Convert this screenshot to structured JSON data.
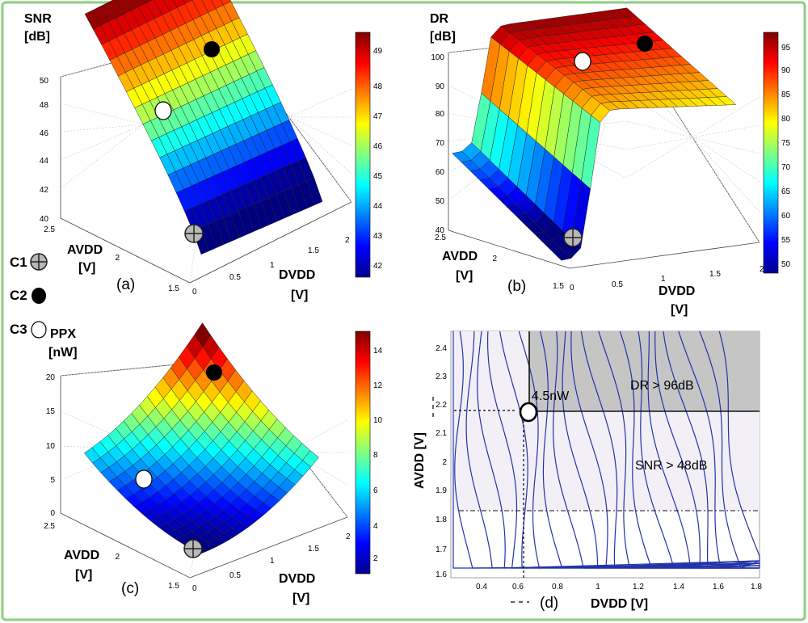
{
  "figure": {
    "border_color": "#8ccf7e",
    "legend": [
      {
        "label": "C1",
        "marker": "crossed-circle-icon"
      },
      {
        "label": "C2",
        "marker": "filled-circle-icon"
      },
      {
        "label": "C3",
        "marker": "open-circle-icon"
      }
    ]
  },
  "chart_data": [
    {
      "type": "surface",
      "panel": "(a)",
      "zlabel_line1": "SNR",
      "zlabel_line2": "[dB]",
      "ylabel_line1": "AVDD",
      "ylabel_line2": "[V]",
      "xlabel_line1": "DVDD",
      "xlabel_line2": "[V]",
      "x_ticks": [
        "0",
        "0.5",
        "1",
        "1.5",
        "2"
      ],
      "y_ticks": [
        "1.5",
        "2",
        "2.5"
      ],
      "z_ticks": [
        "40",
        "42",
        "44",
        "46",
        "48",
        "50"
      ],
      "zlim": [
        40,
        50
      ],
      "xlim": [
        0,
        2
      ],
      "ylim": [
        1.5,
        2.5
      ],
      "colorbar_ticks": [
        "42",
        "43",
        "44",
        "45",
        "46",
        "47",
        "48",
        "49"
      ],
      "colorbar_range": [
        41.4,
        49.6
      ],
      "description": "SNR rises with AVDD from about 40.5 dB at AVDD 1.6 V to about 49.5 dB at AVDD 2.5 V; nearly flat in DVDD",
      "surface_samples": [
        {
          "avdd": 1.6,
          "snr": 40.5
        },
        {
          "avdd": 1.8,
          "snr": 43.0
        },
        {
          "avdd": 2.0,
          "snr": 45.5
        },
        {
          "avdd": 2.2,
          "snr": 47.7
        },
        {
          "avdd": 2.5,
          "snr": 49.5
        }
      ],
      "markers": [
        {
          "label": "C1",
          "dvdd": 0.3,
          "avdd": 1.6,
          "value": 40.3
        },
        {
          "label": "C2",
          "dvdd": 1.8,
          "avdd": 2.5,
          "value": 49.6
        },
        {
          "label": "C3",
          "dvdd": 0.6,
          "avdd": 2.2,
          "value": 48.0
        }
      ]
    },
    {
      "type": "surface",
      "panel": "(b)",
      "zlabel_line1": "DR",
      "zlabel_line2": "[dB]",
      "ylabel_line1": "AVDD",
      "ylabel_line2": "[V]",
      "xlabel_line1": "DVDD",
      "xlabel_line2": "[V]",
      "x_ticks": [
        "0",
        "0.5",
        "1",
        "1.5",
        "2"
      ],
      "y_ticks": [
        "1.5",
        "2",
        "2.5"
      ],
      "z_ticks": [
        "40",
        "50",
        "60",
        "70",
        "80",
        "90",
        "100"
      ],
      "zlim": [
        40,
        100
      ],
      "xlim": [
        0,
        2
      ],
      "ylim": [
        1.5,
        2.5
      ],
      "colorbar_ticks": [
        "50",
        "55",
        "60",
        "65",
        "70",
        "75",
        "80",
        "85",
        "90",
        "95"
      ],
      "colorbar_range": [
        48,
        98
      ],
      "description": "DR is low (about 40-62 dB) for DVDD below about 0.3 V and saturates at about 90-97 dB above; increases with AVDD",
      "surface_samples": [
        {
          "dvdd": 0.1,
          "avdd": 1.6,
          "dr": 42
        },
        {
          "dvdd": 0.1,
          "avdd": 2.5,
          "dr": 62
        },
        {
          "dvdd": 0.6,
          "avdd": 1.6,
          "dr": 82
        },
        {
          "dvdd": 0.6,
          "avdd": 2.5,
          "dr": 97
        },
        {
          "dvdd": 2.0,
          "avdd": 2.5,
          "dr": 97
        }
      ],
      "markers": [
        {
          "label": "C1",
          "dvdd": 0.3,
          "avdd": 1.6,
          "value": 40
        },
        {
          "label": "C2",
          "dvdd": 1.8,
          "avdd": 2.5,
          "value": 99
        },
        {
          "label": "C3",
          "dvdd": 0.6,
          "avdd": 2.2,
          "value": 97
        }
      ]
    },
    {
      "type": "surface",
      "panel": "(c)",
      "zlabel_line1": "PPX",
      "zlabel_line2": "[nW]",
      "ylabel_line1": "AVDD",
      "ylabel_line2": "[V]",
      "xlabel_line1": "DVDD",
      "xlabel_line2": "[V]",
      "x_ticks": [
        "0",
        "0.5",
        "1",
        "1.5",
        "2"
      ],
      "y_ticks": [
        "1.5",
        "2",
        "2.5"
      ],
      "z_ticks": [
        "0",
        "5",
        "10",
        "15",
        "20"
      ],
      "zlim": [
        0,
        20
      ],
      "xlim": [
        0,
        2
      ],
      "ylim": [
        1.5,
        2.5
      ],
      "colorbar_ticks": [
        "2",
        "4",
        "6",
        "8",
        "10",
        "12",
        "14"
      ],
      "colorbar_range": [
        1,
        15
      ],
      "description": "Power per pixel grows with both DVDD and AVDD, from about 1 nW at the low corner to about 15 nW at DVDD 1.8 V, AVDD 2.5 V",
      "surface_samples": [
        {
          "dvdd": 0.3,
          "avdd": 1.6,
          "ppx": 1
        },
        {
          "dvdd": 0.3,
          "avdd": 2.5,
          "ppx": 6
        },
        {
          "dvdd": 1.8,
          "avdd": 1.6,
          "ppx": 7
        },
        {
          "dvdd": 1.8,
          "avdd": 2.5,
          "ppx": 15
        }
      ],
      "markers": [
        {
          "label": "C1",
          "dvdd": 0.3,
          "avdd": 1.6,
          "value": 1
        },
        {
          "label": "C2",
          "dvdd": 1.8,
          "avdd": 2.5,
          "value": 15
        },
        {
          "label": "C3",
          "dvdd": 0.6,
          "avdd": 2.2,
          "value": 4.5
        }
      ]
    },
    {
      "type": "contour",
      "panel": "(d)",
      "xlabel": "DVDD [V]",
      "ylabel": "AVDD [V]",
      "x_ticks": [
        "0.4",
        "0.6",
        "0.8",
        "1",
        "1.2",
        "1.4",
        "1.6",
        "1.8"
      ],
      "y_ticks": [
        "1.6",
        "1.7",
        "1.8",
        "1.9",
        "2",
        "2.1",
        "2.2",
        "2.3",
        "2.4"
      ],
      "xlim": [
        0.25,
        1.8
      ],
      "ylim": [
        1.59,
        2.45
      ],
      "x_mark_label": "0.6",
      "y_mark_label": "2.2",
      "regions": [
        {
          "label": "DR > 96dB",
          "dvdd_min": 0.63,
          "avdd_min": 2.17
        },
        {
          "label": "SNR > 48dB",
          "dvdd_min": 0.28,
          "avdd_min": 1.83
        }
      ],
      "annotation": "4.5nW",
      "optimum": {
        "dvdd": 0.63,
        "avdd": 2.17,
        "ppx_nW": 4.5
      },
      "contour_count": 21
    }
  ]
}
